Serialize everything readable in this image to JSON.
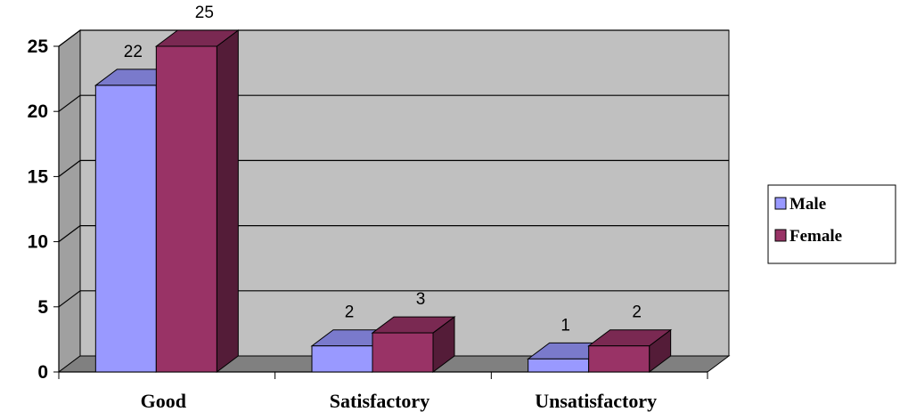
{
  "chart_data": {
    "type": "bar",
    "categories": [
      "Good",
      "Satisfactory",
      "Unsatisfactory"
    ],
    "series": [
      {
        "name": "Male",
        "values": [
          22,
          2,
          1
        ],
        "labels": [
          "22",
          "2",
          "1"
        ]
      },
      {
        "name": "Female",
        "values": [
          25,
          3,
          2
        ],
        "labels": [
          "25",
          "3",
          "2"
        ]
      }
    ],
    "yticks": [
      "0",
      "5",
      "10",
      "15",
      "20",
      "25"
    ],
    "ylim": [
      0,
      25
    ],
    "grid": true,
    "legend_position": "right",
    "three_d": true
  },
  "colors": {
    "male": "#9999ff",
    "female": "#993366",
    "wall": "#c0c0c0",
    "floor": "#808080"
  }
}
